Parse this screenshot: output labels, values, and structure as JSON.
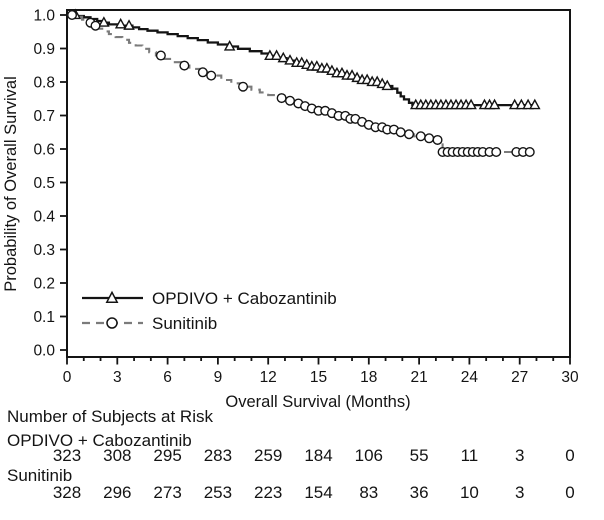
{
  "figure": {
    "background_color": "#ffffff",
    "ink_color": "#141414",
    "gray_color": "#7b7b7b"
  },
  "chart_data": {
    "type": "line",
    "subtype": "kaplan-meier-step",
    "title": "",
    "xlabel": "Overall Survival (Months)",
    "ylabel": "Probability of Overall Survival",
    "xlim": [
      0,
      30
    ],
    "ylim": [
      0.0,
      1.0
    ],
    "x_ticks": [
      0,
      3,
      6,
      9,
      12,
      15,
      18,
      21,
      24,
      27,
      30
    ],
    "x_minor_tick_every": 1,
    "y_ticks": [
      1.0,
      0.9,
      0.8,
      0.7,
      0.6,
      0.5,
      0.4,
      0.3,
      0.2,
      0.1,
      0.0
    ],
    "y_tick_labels": [
      "1.0",
      "0.9",
      "0.8",
      "0.7",
      "0.6",
      "0.5",
      "0.4",
      "0.3",
      "0.2",
      "0.1",
      "0.0"
    ],
    "grid": false,
    "legend_position": "inside-lower-left",
    "series": [
      {
        "name": "OPDIVO + Cabozantinib",
        "line_style": "solid",
        "color": "#141414",
        "marker": "triangle-open",
        "steps": [
          [
            0,
            1.0
          ],
          [
            0.6,
            0.997
          ],
          [
            1.0,
            0.993
          ],
          [
            1.4,
            0.988
          ],
          [
            1.8,
            0.982
          ],
          [
            2.1,
            0.977
          ],
          [
            2.5,
            0.972
          ],
          [
            3.3,
            0.968
          ],
          [
            3.9,
            0.963
          ],
          [
            4.3,
            0.958
          ],
          [
            4.8,
            0.953
          ],
          [
            5.4,
            0.948
          ],
          [
            6.0,
            0.943
          ],
          [
            6.6,
            0.937
          ],
          [
            7.2,
            0.931
          ],
          [
            7.8,
            0.925
          ],
          [
            8.4,
            0.918
          ],
          [
            9.0,
            0.912
          ],
          [
            9.6,
            0.906
          ],
          [
            10.2,
            0.899
          ],
          [
            10.9,
            0.892
          ],
          [
            11.6,
            0.885
          ],
          [
            12.1,
            0.878
          ],
          [
            12.6,
            0.871
          ],
          [
            13.1,
            0.864
          ],
          [
            13.6,
            0.857
          ],
          [
            14.1,
            0.851
          ],
          [
            14.6,
            0.846
          ],
          [
            15.1,
            0.84
          ],
          [
            15.6,
            0.833
          ],
          [
            16.1,
            0.826
          ],
          [
            16.6,
            0.819
          ],
          [
            17.1,
            0.812
          ],
          [
            17.6,
            0.806
          ],
          [
            18.1,
            0.8
          ],
          [
            18.6,
            0.794
          ],
          [
            19.0,
            0.788
          ],
          [
            19.4,
            0.78
          ],
          [
            19.7,
            0.768
          ],
          [
            19.9,
            0.757
          ],
          [
            20.1,
            0.748
          ],
          [
            20.4,
            0.738
          ],
          [
            20.6,
            0.731
          ],
          [
            28.0,
            0.731
          ]
        ],
        "censor_marks_months": [
          0.5,
          2.2,
          3.2,
          3.7,
          9.7,
          12.1,
          12.5,
          12.9,
          13.3,
          13.7,
          14.0,
          14.3,
          14.6,
          14.9,
          15.2,
          15.5,
          15.8,
          16.1,
          16.4,
          16.7,
          17.0,
          17.3,
          17.6,
          17.9,
          18.2,
          18.5,
          18.8,
          19.1,
          20.8,
          21.1,
          21.4,
          21.7,
          22.0,
          22.3,
          22.6,
          22.9,
          23.2,
          23.5,
          23.8,
          24.1,
          24.9,
          25.2,
          25.5,
          26.7,
          27.1,
          27.5,
          27.9
        ]
      },
      {
        "name": "Sunitinib",
        "line_style": "dashed",
        "color": "#7b7b7b",
        "marker": "circle-open",
        "steps": [
          [
            0,
            1.0
          ],
          [
            0.5,
            0.995
          ],
          [
            0.9,
            0.986
          ],
          [
            1.2,
            0.977
          ],
          [
            1.5,
            0.968
          ],
          [
            1.8,
            0.959
          ],
          [
            2.1,
            0.951
          ],
          [
            2.5,
            0.943
          ],
          [
            2.9,
            0.934
          ],
          [
            3.3,
            0.926
          ],
          [
            3.7,
            0.917
          ],
          [
            4.1,
            0.909
          ],
          [
            4.5,
            0.899
          ],
          [
            4.9,
            0.889
          ],
          [
            5.3,
            0.879
          ],
          [
            5.8,
            0.869
          ],
          [
            6.3,
            0.859
          ],
          [
            6.8,
            0.849
          ],
          [
            7.3,
            0.839
          ],
          [
            7.9,
            0.829
          ],
          [
            8.5,
            0.819
          ],
          [
            9.2,
            0.806
          ],
          [
            9.8,
            0.796
          ],
          [
            10.4,
            0.786
          ],
          [
            11.0,
            0.777
          ],
          [
            11.5,
            0.769
          ],
          [
            12.0,
            0.761
          ],
          [
            12.5,
            0.752
          ],
          [
            13.0,
            0.744
          ],
          [
            13.5,
            0.736
          ],
          [
            14.0,
            0.728
          ],
          [
            14.5,
            0.721
          ],
          [
            15.0,
            0.714
          ],
          [
            15.6,
            0.707
          ],
          [
            16.2,
            0.699
          ],
          [
            16.8,
            0.69
          ],
          [
            17.4,
            0.681
          ],
          [
            17.9,
            0.672
          ],
          [
            18.4,
            0.665
          ],
          [
            19.0,
            0.658
          ],
          [
            19.6,
            0.65
          ],
          [
            20.1,
            0.644
          ],
          [
            20.7,
            0.638
          ],
          [
            21.3,
            0.632
          ],
          [
            21.9,
            0.627
          ],
          [
            22.4,
            0.591
          ],
          [
            27.6,
            0.591
          ]
        ],
        "censor_marks_months": [
          0.3,
          1.4,
          1.7,
          5.6,
          7.0,
          8.1,
          8.6,
          10.5,
          12.8,
          13.3,
          13.8,
          14.2,
          14.6,
          15.0,
          15.4,
          15.8,
          16.2,
          16.6,
          16.9,
          17.2,
          17.6,
          18.0,
          18.4,
          18.8,
          19.1,
          19.5,
          19.9,
          20.4,
          21.1,
          21.6,
          22.1,
          22.4,
          22.7,
          23.0,
          23.3,
          23.6,
          23.9,
          24.2,
          24.5,
          24.8,
          25.2,
          25.6,
          26.8,
          27.2,
          27.6
        ]
      }
    ],
    "at_risk_table": {
      "header": "Number of Subjects at Risk",
      "time_points": [
        0,
        3,
        6,
        9,
        12,
        15,
        18,
        21,
        24,
        27,
        30
      ],
      "rows": [
        {
          "label": "OPDIVO + Cabozantinib",
          "values": [
            323,
            308,
            295,
            283,
            259,
            184,
            106,
            55,
            11,
            3,
            0
          ]
        },
        {
          "label": "Sunitinib",
          "values": [
            328,
            296,
            273,
            253,
            223,
            154,
            83,
            36,
            10,
            3,
            0
          ]
        }
      ]
    }
  }
}
